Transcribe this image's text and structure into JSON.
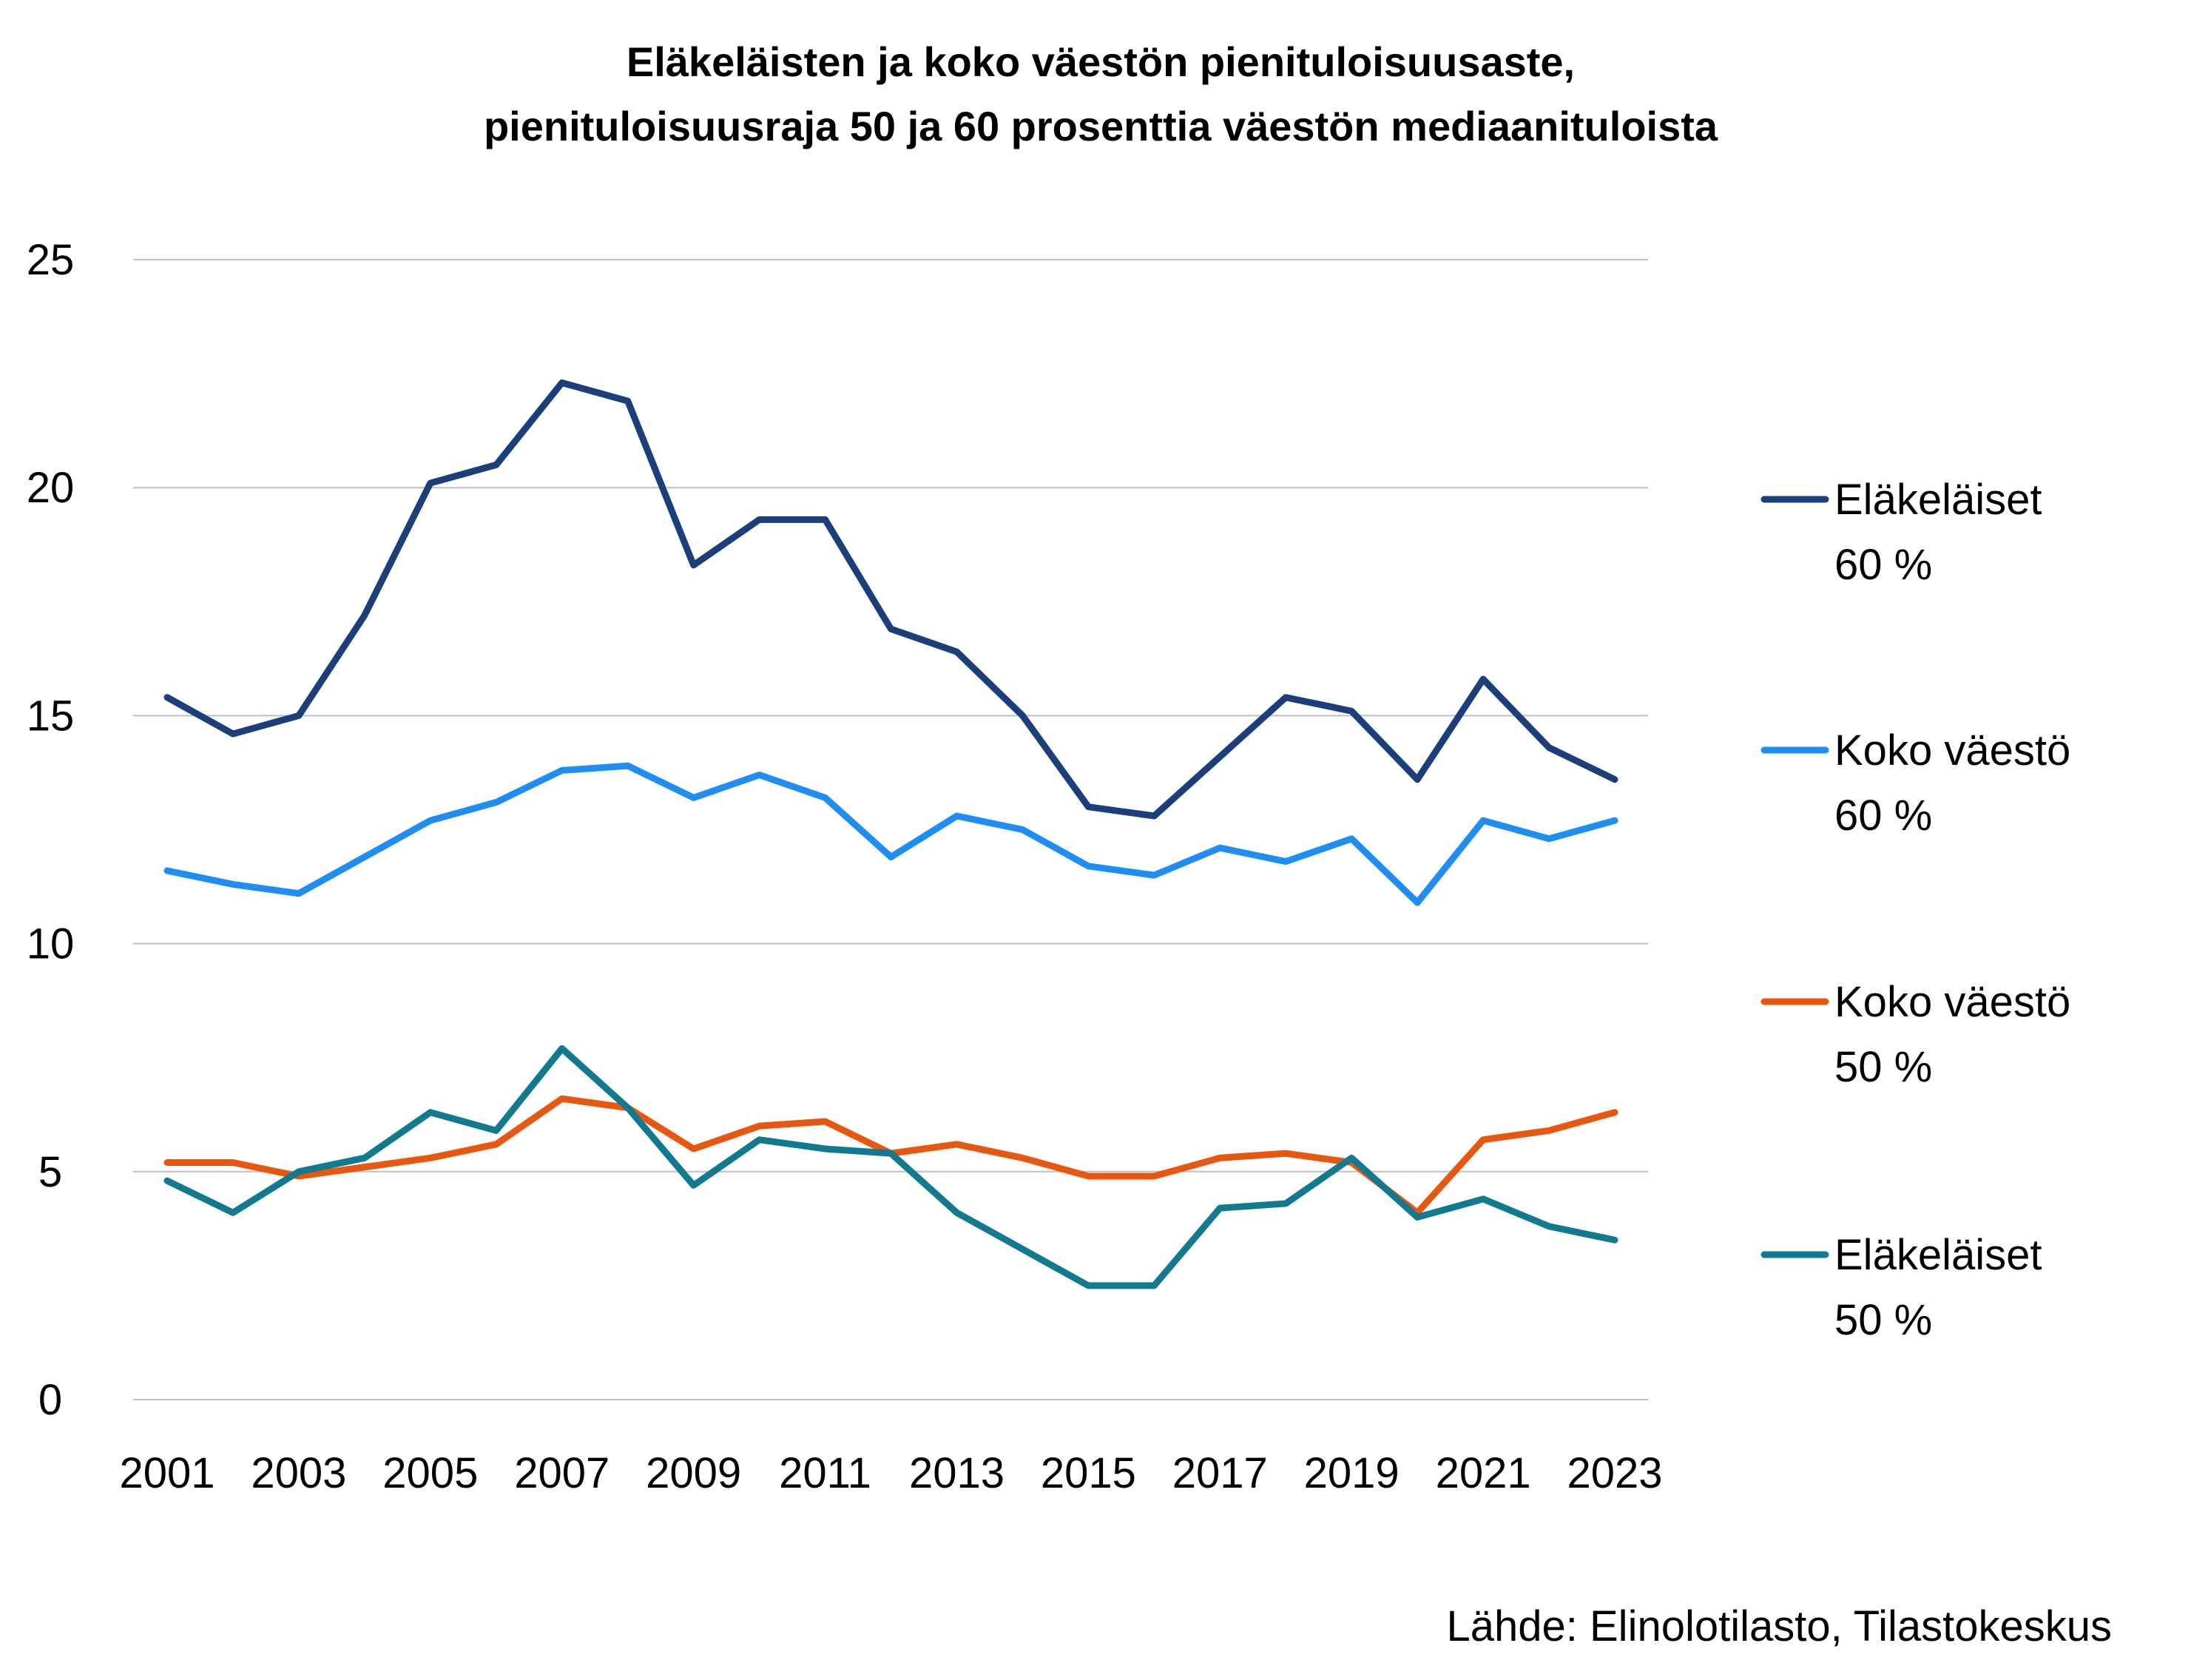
{
  "chart_data": {
    "type": "line",
    "title_lines": [
      "Eläkeläisten ja koko väestön pienituloisuusaste,",
      "pienituloisuusraja 50 ja 60 prosenttia väestön mediaanituloista"
    ],
    "x": [
      2001,
      2002,
      2003,
      2004,
      2005,
      2006,
      2007,
      2008,
      2009,
      2010,
      2011,
      2012,
      2013,
      2014,
      2015,
      2016,
      2017,
      2018,
      2019,
      2020,
      2021,
      2022,
      2023
    ],
    "x_tick_labels": [
      "2001",
      "2003",
      "2005",
      "2007",
      "2009",
      "2011",
      "2013",
      "2015",
      "2017",
      "2019",
      "2021",
      "2023"
    ],
    "ylim": [
      0,
      25
    ],
    "y_ticks": [
      0,
      5,
      10,
      15,
      20,
      25
    ],
    "grid": true,
    "legend_position": "right",
    "series": [
      {
        "name_lines": [
          "Eläkeläiset",
          "60 %"
        ],
        "color": "#1a3f7a",
        "values": [
          15.4,
          14.6,
          15.0,
          17.2,
          20.1,
          20.5,
          22.3,
          21.9,
          18.3,
          19.3,
          19.3,
          16.9,
          16.4,
          15.0,
          13.0,
          12.8,
          14.1,
          15.4,
          15.1,
          13.6,
          15.8,
          14.3,
          13.6
        ]
      },
      {
        "name_lines": [
          "Koko väestö",
          "60 %"
        ],
        "color": "#1e8ef5",
        "values": [
          11.6,
          11.3,
          11.1,
          11.9,
          12.7,
          13.1,
          13.8,
          13.9,
          13.2,
          13.7,
          13.2,
          11.9,
          12.8,
          12.5,
          11.7,
          11.5,
          12.1,
          11.8,
          12.3,
          10.9,
          12.7,
          12.3,
          12.7
        ]
      },
      {
        "name_lines": [
          "Koko väestö",
          "50 %"
        ],
        "color": "#e8570f",
        "values": [
          5.2,
          5.2,
          4.9,
          5.1,
          5.3,
          5.6,
          6.6,
          6.4,
          5.5,
          6.0,
          6.1,
          5.4,
          5.6,
          5.3,
          4.9,
          4.9,
          5.3,
          5.4,
          5.2,
          4.1,
          5.7,
          5.9,
          6.3
        ]
      },
      {
        "name_lines": [
          "Eläkeläiset",
          "50 %"
        ],
        "color": "#127a8e",
        "values": [
          4.8,
          4.1,
          5.0,
          5.3,
          6.3,
          5.9,
          7.7,
          6.4,
          4.7,
          5.7,
          5.5,
          5.4,
          4.1,
          3.3,
          2.5,
          2.5,
          4.2,
          4.3,
          5.3,
          4.0,
          4.4,
          3.8,
          3.5
        ]
      }
    ],
    "source": "Lähde: Elinolotilasto, Tilastokeskus"
  }
}
